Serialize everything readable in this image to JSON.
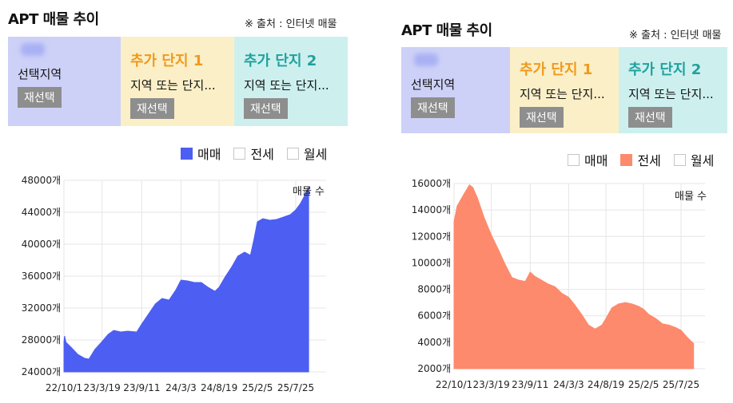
{
  "panels": [
    {
      "title": "APT 매물 추이",
      "source": "※ 출처 : 인터넷 매물",
      "cards": [
        {
          "heading": "",
          "sub": "선택지역",
          "button": "재선택"
        },
        {
          "heading": "추가 단지 1",
          "sub": "지역 또는 단지...",
          "button": "재선택"
        },
        {
          "heading": "추가 단지 2",
          "sub": "지역 또는 단지...",
          "button": "재선택"
        }
      ],
      "legend": [
        {
          "label": "매매",
          "checked": true
        },
        {
          "label": "전세",
          "checked": false
        },
        {
          "label": "월세",
          "checked": false
        }
      ]
    },
    {
      "title": "APT 매물 추이",
      "source": "※ 출처 : 인터넷 매물",
      "cards": [
        {
          "heading": "",
          "sub": "선택지역",
          "button": "재선택"
        },
        {
          "heading": "추가 단지 1",
          "sub": "지역 또는 단지...",
          "button": "재선택"
        },
        {
          "heading": "추가 단지 2",
          "sub": "지역 또는 단지...",
          "button": "재선택"
        }
      ],
      "legend": [
        {
          "label": "매매",
          "checked": false
        },
        {
          "label": "전세",
          "checked": true
        },
        {
          "label": "월세",
          "checked": false
        }
      ]
    }
  ],
  "colors": {
    "card_region": "#cdd1f7",
    "card_extra1": "#fbefc8",
    "card_extra2": "#cdf0ef",
    "heading_extra1": "#f09a1d",
    "heading_extra2": "#21a19d",
    "sale_fill": "#4d5ef2",
    "jeonse_fill": "#fd8a6c"
  },
  "chart_data": [
    {
      "type": "area",
      "series_label": "매매 매물 수",
      "annotation": "매물 수",
      "unit_suffix": "개",
      "ylim": [
        24000,
        48000
      ],
      "yticks": [
        24000,
        28000,
        32000,
        36000,
        40000,
        44000,
        48000
      ],
      "xticks": [
        "22/10/1",
        "23/3/19",
        "23/9/11",
        "24/3/3",
        "24/8/19",
        "25/2/5",
        "25/7/25"
      ],
      "grid": true,
      "points": [
        [
          "2022-10-01",
          27800
        ],
        [
          "2022-10-04",
          28500
        ],
        [
          "2022-10-10",
          27700
        ],
        [
          "2022-11-01",
          27100
        ],
        [
          "2022-12-01",
          26200
        ],
        [
          "2023-01-01",
          25700
        ],
        [
          "2023-01-20",
          25600
        ],
        [
          "2023-02-15",
          26800
        ],
        [
          "2023-03-19",
          27800
        ],
        [
          "2023-04-15",
          28700
        ],
        [
          "2023-05-10",
          29200
        ],
        [
          "2023-06-10",
          29000
        ],
        [
          "2023-07-10",
          29100
        ],
        [
          "2023-08-20",
          29000
        ],
        [
          "2023-09-11",
          30000
        ],
        [
          "2023-10-10",
          31200
        ],
        [
          "2023-11-10",
          32500
        ],
        [
          "2023-12-10",
          33200
        ],
        [
          "2024-01-10",
          33000
        ],
        [
          "2024-02-10",
          34300
        ],
        [
          "2024-03-03",
          35500
        ],
        [
          "2024-04-01",
          35400
        ],
        [
          "2024-05-01",
          35200
        ],
        [
          "2024-06-01",
          35200
        ],
        [
          "2024-07-01",
          34600
        ],
        [
          "2024-08-01",
          34100
        ],
        [
          "2024-08-19",
          34600
        ],
        [
          "2024-09-15",
          35900
        ],
        [
          "2024-10-15",
          37200
        ],
        [
          "2024-11-10",
          38500
        ],
        [
          "2024-12-10",
          39000
        ],
        [
          "2025-01-05",
          38600
        ],
        [
          "2025-01-20",
          40500
        ],
        [
          "2025-02-05",
          42800
        ],
        [
          "2025-03-01",
          43200
        ],
        [
          "2025-04-01",
          43000
        ],
        [
          "2025-05-01",
          43100
        ],
        [
          "2025-06-01",
          43400
        ],
        [
          "2025-07-01",
          43700
        ],
        [
          "2025-07-25",
          44300
        ],
        [
          "2025-08-15",
          45100
        ],
        [
          "2025-09-01",
          46000
        ],
        [
          "2025-09-20",
          47200
        ]
      ]
    },
    {
      "type": "area",
      "series_label": "전세 매물 수",
      "annotation": "매물 수",
      "unit_suffix": "개",
      "ylim": [
        2000,
        16000
      ],
      "yticks": [
        2000,
        4000,
        6000,
        8000,
        10000,
        12000,
        14000,
        16000
      ],
      "xticks": [
        "22/10/1",
        "23/3/19",
        "23/9/11",
        "24/3/3",
        "24/8/19",
        "25/2/5",
        "25/7/25"
      ],
      "grid": true,
      "points": [
        [
          "2022-10-01",
          13100
        ],
        [
          "2022-10-15",
          14300
        ],
        [
          "2022-11-15",
          15200
        ],
        [
          "2022-12-10",
          15900
        ],
        [
          "2022-12-25",
          15700
        ],
        [
          "2023-01-15",
          14900
        ],
        [
          "2023-02-15",
          13400
        ],
        [
          "2023-03-19",
          12100
        ],
        [
          "2023-04-20",
          11000
        ],
        [
          "2023-05-20",
          9900
        ],
        [
          "2023-06-20",
          8900
        ],
        [
          "2023-07-20",
          8700
        ],
        [
          "2023-08-20",
          8600
        ],
        [
          "2023-09-11",
          9300
        ],
        [
          "2023-10-01",
          9000
        ],
        [
          "2023-11-01",
          8700
        ],
        [
          "2023-12-01",
          8400
        ],
        [
          "2024-01-01",
          8200
        ],
        [
          "2024-02-01",
          7700
        ],
        [
          "2024-03-03",
          7400
        ],
        [
          "2024-04-01",
          6800
        ],
        [
          "2024-05-01",
          6100
        ],
        [
          "2024-06-01",
          5300
        ],
        [
          "2024-07-01",
          5000
        ],
        [
          "2024-08-01",
          5300
        ],
        [
          "2024-08-19",
          5800
        ],
        [
          "2024-09-15",
          6600
        ],
        [
          "2024-10-15",
          6900
        ],
        [
          "2024-11-15",
          7000
        ],
        [
          "2024-12-15",
          6900
        ],
        [
          "2025-01-15",
          6700
        ],
        [
          "2025-02-05",
          6500
        ],
        [
          "2025-03-01",
          6100
        ],
        [
          "2025-04-01",
          5800
        ],
        [
          "2025-05-01",
          5400
        ],
        [
          "2025-06-01",
          5300
        ],
        [
          "2025-07-01",
          5100
        ],
        [
          "2025-07-25",
          4900
        ],
        [
          "2025-08-20",
          4400
        ],
        [
          "2025-09-20",
          3900
        ]
      ]
    }
  ]
}
